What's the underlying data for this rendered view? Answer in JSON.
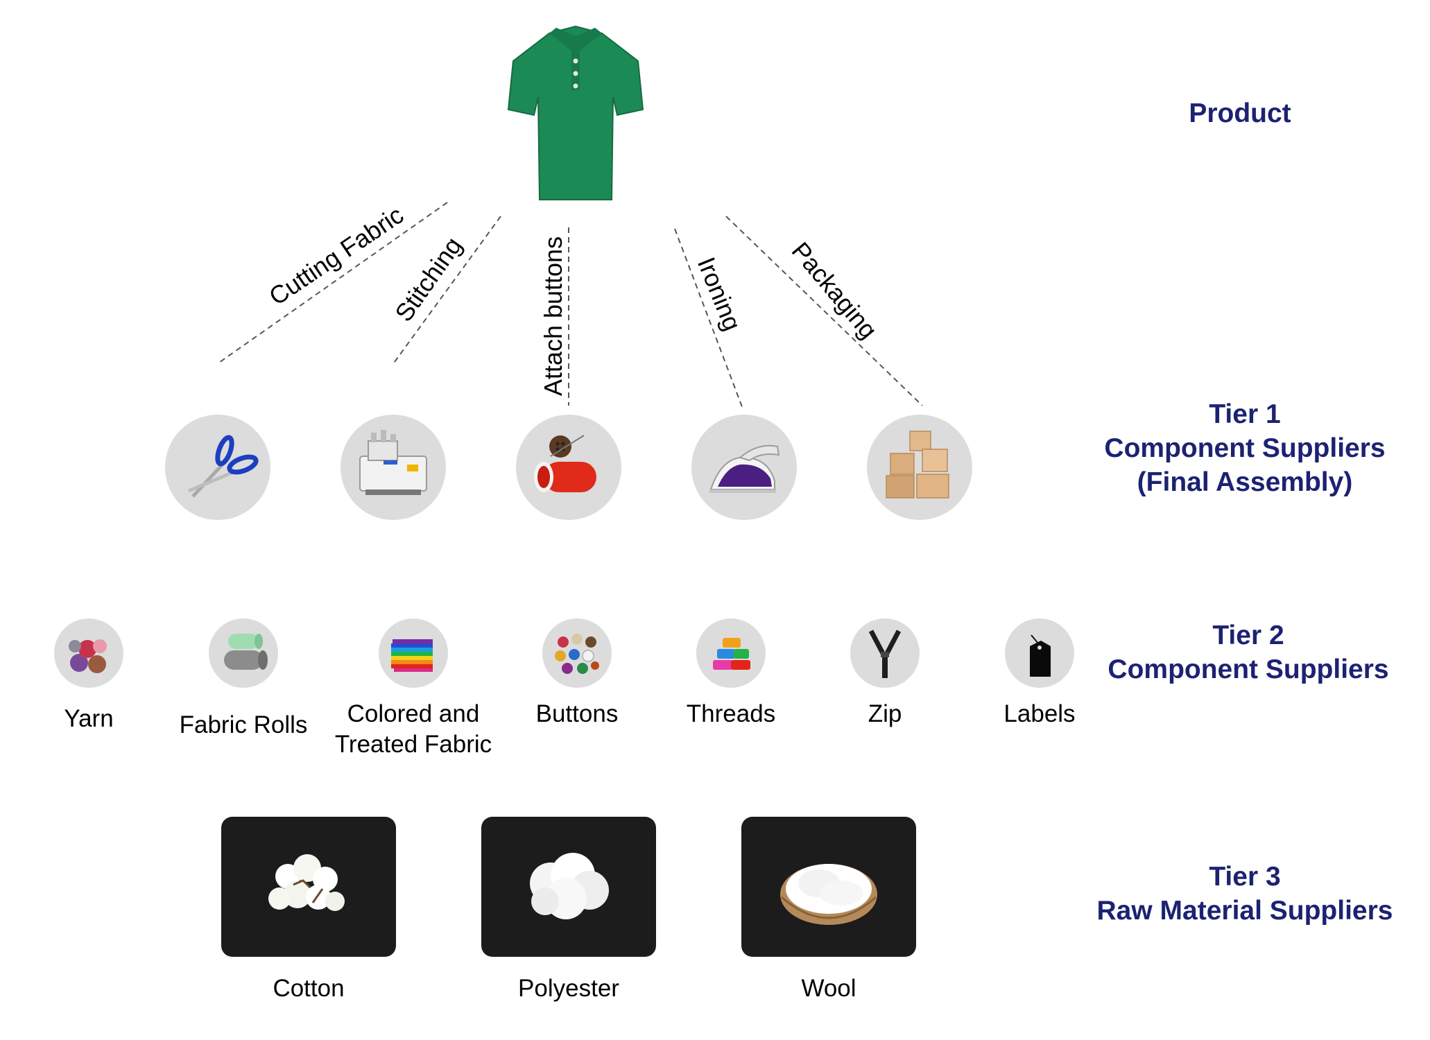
{
  "colors": {
    "accent": "#1c2272",
    "circle": "#dcdcdc",
    "tile": "#1c1c1c",
    "shirt": "#1c8a55"
  },
  "product": {
    "label": "Product",
    "icon": "polo-shirt-icon"
  },
  "tier1": {
    "title": "Tier 1",
    "lines": [
      "Component Suppliers",
      "(Final Assembly)"
    ],
    "steps": [
      {
        "label": "Cutting Fabric",
        "icon": "scissors-icon"
      },
      {
        "label": "Stitching",
        "icon": "sewing-machine-icon"
      },
      {
        "label": "Attach buttons",
        "icon": "button-thread-icon"
      },
      {
        "label": "Ironing",
        "icon": "iron-icon"
      },
      {
        "label": "Packaging",
        "icon": "boxes-icon"
      }
    ]
  },
  "tier2": {
    "title": "Tier 2",
    "subtitle": "Component Suppliers",
    "items": [
      {
        "label": "Yarn",
        "icon": "yarn-icon"
      },
      {
        "label": "Fabric Rolls",
        "icon": "fabric-rolls-icon"
      },
      {
        "label": "Colored and\nTreated Fabric",
        "icon": "colored-fabric-icon"
      },
      {
        "label": "Buttons",
        "icon": "buttons-icon"
      },
      {
        "label": "Threads",
        "icon": "threads-icon"
      },
      {
        "label": "Zip",
        "icon": "zip-icon"
      },
      {
        "label": "Labels",
        "icon": "label-tag-icon"
      }
    ]
  },
  "tier3": {
    "title": "Tier 3",
    "subtitle": "Raw Material Suppliers",
    "items": [
      {
        "label": "Cotton",
        "icon": "cotton-icon"
      },
      {
        "label": "Polyester",
        "icon": "polyester-icon"
      },
      {
        "label": "Wool",
        "icon": "wool-icon"
      }
    ]
  }
}
